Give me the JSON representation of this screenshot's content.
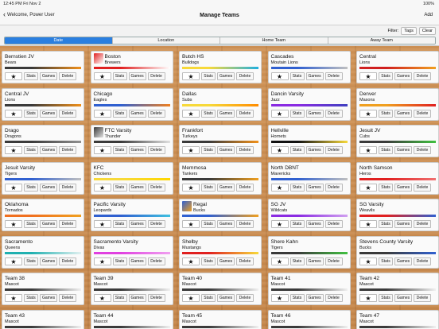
{
  "status": {
    "time": "12:45 PM  Fri Nov 2",
    "battery": "100%"
  },
  "nav": {
    "back_label": "Welcome, Power User",
    "title": "Manage Teams",
    "add_label": "Add"
  },
  "filter": {
    "label": "Filter:",
    "tags_label": "Tags",
    "clear_label": "Clear"
  },
  "segments": [
    {
      "label": "Date",
      "active": true
    },
    {
      "label": "Location",
      "active": false
    },
    {
      "label": "Home Team",
      "active": false
    },
    {
      "label": "Away Team",
      "active": false
    }
  ],
  "card_buttons": {
    "stats": "Stats",
    "games": "Games",
    "delete": "Delete"
  },
  "teams": [
    {
      "name": "Bernstien JV",
      "mascot": "Bears",
      "colors": [
        "#3a3a3a",
        "#f0901a"
      ]
    },
    {
      "name": "Boston",
      "mascot": "Brewers",
      "colors": [
        "#e02020",
        "#ffffff"
      ],
      "logo": "brewers-logo"
    },
    {
      "name": "Butch HS",
      "mascot": "Bulldogs",
      "colors": [
        "#f7d93a",
        "#20b0e0"
      ]
    },
    {
      "name": "Cascades",
      "mascot": "Moutain Lions",
      "colors": [
        "#3060d0",
        "#c0c0c0"
      ]
    },
    {
      "name": "Central",
      "mascot": "Lions",
      "colors": [
        "#d02020",
        "#f0a020"
      ]
    },
    {
      "name": "Central JV",
      "mascot": "Lions",
      "colors": [
        "#3a3a3a",
        "#f0901a"
      ]
    },
    {
      "name": "Chicago",
      "mascot": "Eagles",
      "colors": [
        "#3060d0",
        "#f08020"
      ]
    },
    {
      "name": "Dallas",
      "mascot": "Subs",
      "colors": [
        "#f7d93a",
        "#ff8c00"
      ]
    },
    {
      "name": "Dancin Varsity",
      "mascot": "Jazz",
      "colors": [
        "#8a2be2",
        "#4040c0"
      ]
    },
    {
      "name": "Denver",
      "mascot": "Masons",
      "colors": [
        "#f0a020",
        "#e02020"
      ]
    },
    {
      "name": "Drago",
      "mascot": "Dragons",
      "colors": [
        "#3a3a3a",
        "#909090"
      ]
    },
    {
      "name": "FTC Varsity",
      "mascot": "Thunder",
      "colors": [
        "#3a3a3a",
        "#e0e0e0"
      ],
      "logo": "thunder-logo"
    },
    {
      "name": "Frankfort",
      "mascot": "Turkeys",
      "colors": [
        "#3a3a3a",
        "#f0901a"
      ]
    },
    {
      "name": "Hellville",
      "mascot": "Hornets",
      "colors": [
        "#111111",
        "#f7d93a"
      ]
    },
    {
      "name": "Jesuit JV",
      "mascot": "Cubs",
      "colors": [
        "#3a3a3a",
        "#40c040"
      ]
    },
    {
      "name": "Jesuit Varsity",
      "mascot": "Tigers",
      "colors": [
        "#3060d0",
        "#c0c0c0"
      ]
    },
    {
      "name": "KFC",
      "mascot": "Chickens",
      "colors": [
        "#f7d93a",
        "#ffd700"
      ]
    },
    {
      "name": "Memmosa",
      "mascot": "Tankers",
      "colors": [
        "#3a3a3a",
        "#f0a020"
      ]
    },
    {
      "name": "North DBNT",
      "mascot": "Mavericks",
      "colors": [
        "#3060d0",
        "#c0c0c0"
      ]
    },
    {
      "name": "North Samson",
      "mascot": "Heros",
      "colors": [
        "#e02020",
        "#f07070"
      ]
    },
    {
      "name": "Oklahoma",
      "mascot": "Tornados",
      "colors": [
        "#f07020",
        "#f0a020"
      ]
    },
    {
      "name": "Pacific Varsity",
      "mascot": "Leopards",
      "colors": [
        "#3060d0",
        "#40c0e0"
      ]
    },
    {
      "name": "Regal",
      "mascot": "Bucks",
      "colors": [
        "#3060d0",
        "#f0a020"
      ],
      "logo": "bucks-logo"
    },
    {
      "name": "SG JV",
      "mascot": "Wildcats",
      "colors": [
        "#8a2be2",
        "#d0a0f0"
      ]
    },
    {
      "name": "SG Varsity",
      "mascot": "Weavils",
      "colors": [
        "#e02020",
        "#3060d0"
      ]
    },
    {
      "name": "Sacramento",
      "mascot": "Queens",
      "colors": [
        "#20b0b0",
        "#e0f0f0"
      ]
    },
    {
      "name": "Sacramento Varsity",
      "mascot": "Divas",
      "colors": [
        "#e040e0",
        "#f0a0f0"
      ]
    },
    {
      "name": "Shelby",
      "mascot": "Mustangs",
      "colors": [
        "#e02020",
        "#f7d93a"
      ]
    },
    {
      "name": "Shere Kahn",
      "mascot": "Tigers",
      "colors": [
        "#3a3a3a",
        "#40c040"
      ]
    },
    {
      "name": "Stevens County Varsity",
      "mascot": "Bucks",
      "colors": [
        "#3a3a3a",
        "#3060d0"
      ]
    },
    {
      "name": "Team 38",
      "mascot": "Mascot",
      "colors": [
        "#3a3a3a",
        "#f0f0f0"
      ]
    },
    {
      "name": "Team 39",
      "mascot": "Mascot",
      "colors": [
        "#3a3a3a",
        "#f0f0f0"
      ]
    },
    {
      "name": "Team 40",
      "mascot": "Mascot",
      "colors": [
        "#3a3a3a",
        "#f0f0f0"
      ]
    },
    {
      "name": "Team 41",
      "mascot": "Mascot",
      "colors": [
        "#3a3a3a",
        "#f0f0f0"
      ]
    },
    {
      "name": "Team 42",
      "mascot": "Mascot",
      "colors": [
        "#3a3a3a",
        "#f0f0f0"
      ]
    },
    {
      "name": "Team 43",
      "mascot": "Mascot",
      "colors": [
        "#3a3a3a",
        "#f0f0f0"
      ]
    },
    {
      "name": "Team 44",
      "mascot": "Mascot",
      "colors": [
        "#3a3a3a",
        "#f0f0f0"
      ]
    },
    {
      "name": "Team 45",
      "mascot": "Mascot",
      "colors": [
        "#3a3a3a",
        "#f0f0f0"
      ]
    },
    {
      "name": "Team 46",
      "mascot": "Mascot",
      "colors": [
        "#3a3a3a",
        "#f0f0f0"
      ]
    },
    {
      "name": "Team 47",
      "mascot": "Mascot",
      "colors": [
        "#3a3a3a",
        "#f0f0f0"
      ]
    }
  ]
}
